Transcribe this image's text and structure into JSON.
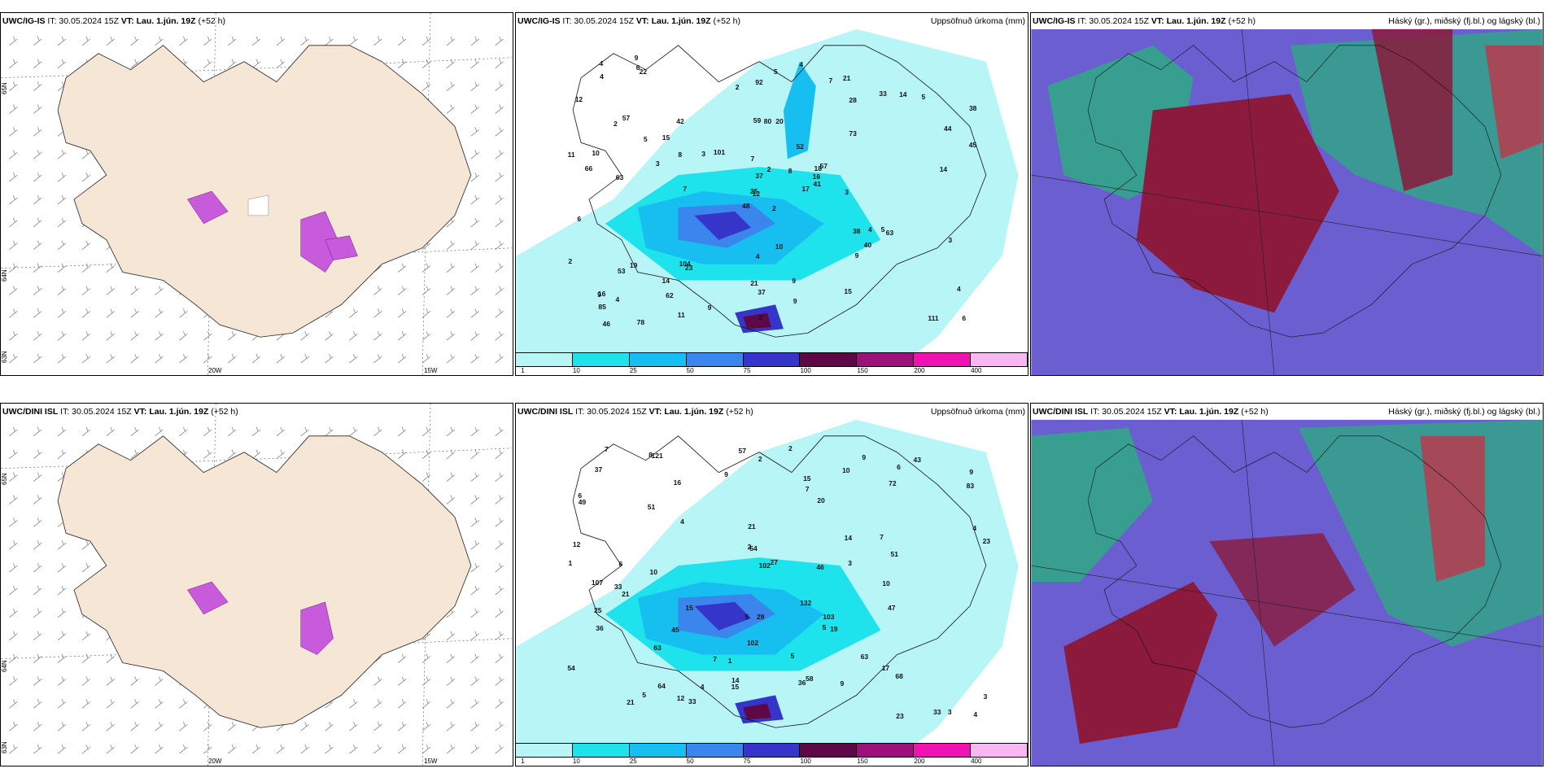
{
  "rows": [
    {
      "model": "UWC/IG-IS",
      "it": "IT: 30.05.2024 15Z",
      "vt": "VT: Lau. 1.jún. 19Z",
      "lead": "(+52 h)",
      "precip_values": [
        "2",
        "2",
        "12",
        "16",
        "18",
        "23",
        "21",
        "20",
        "28",
        "17",
        "22",
        "6",
        "63",
        "38",
        "48",
        "73",
        "78",
        "59",
        "52",
        "19",
        "101",
        "85",
        "62",
        "80",
        "57",
        "63",
        "57",
        "92",
        "66",
        "38",
        "45",
        "25",
        "21",
        "37",
        "42",
        "33",
        "104",
        "111",
        "4",
        "5",
        "4",
        "3",
        "3",
        "9",
        "11",
        "11",
        "16",
        "46",
        "37",
        "41",
        "53",
        "44",
        "12",
        "40",
        "15",
        "14",
        "6",
        "4",
        "9",
        "5",
        "5",
        "7",
        "10",
        "15",
        "14",
        "9",
        "7",
        "2",
        "2",
        "2",
        "4",
        "9",
        "4",
        "8",
        "9",
        "4",
        "5",
        "6",
        "7",
        "9",
        "8",
        "4",
        "3",
        "3",
        "2",
        "14",
        "10"
      ]
    },
    {
      "model": "UWC/DINI ISL",
      "it": "IT: 30.05.2024 15Z",
      "vt": "VT: Lau. 1.jún. 19Z",
      "lead": "(+52 h)",
      "precip_values": [
        "1",
        "2",
        "7",
        "9",
        "6",
        "33",
        "33",
        "20",
        "21",
        "43",
        "27",
        "47",
        "57",
        "49",
        "51",
        "63",
        "58",
        "107",
        "132",
        "102",
        "63",
        "68",
        "83",
        "54",
        "64",
        "102",
        "103",
        "121",
        "33",
        "36",
        "25",
        "23",
        "46",
        "21",
        "12",
        "36",
        "51",
        "37",
        "4",
        "4",
        "5",
        "3",
        "3",
        "23",
        "29",
        "45",
        "72",
        "54",
        "14",
        "10",
        "14",
        "17",
        "19",
        "10",
        "9",
        "9",
        "5",
        "2",
        "6",
        "7",
        "5",
        "5",
        "4",
        "4",
        "3",
        "6",
        "1",
        "15",
        "15",
        "12",
        "10",
        "7",
        "8",
        "7",
        "15",
        "16",
        "9",
        "21",
        "2"
      ]
    }
  ],
  "precip_title": "Uppsöfnuð úrkoma (mm)",
  "cloud_title": "Háský (gr.), miðský (fj.bl.) og lágský (bl.)",
  "lat_labels": [
    "65N",
    "64N",
    "63N"
  ],
  "lon_labels": [
    "20W",
    "15W"
  ],
  "scale_labels": [
    "1",
    "10",
    "25",
    "50",
    "75",
    "100",
    "150",
    "200",
    "400"
  ],
  "scale_colors": [
    "#b8f5f7",
    "#1ee3ec",
    "#16bff0",
    "#3a86ec",
    "#3535c9",
    "#5e0848",
    "#a0107a",
    "#f012b4",
    "#f7b8f2"
  ],
  "colors": {
    "land": "#f5e6d6",
    "sea": "#ffffff",
    "cloud_high": "#c0344a",
    "cloud_mid": "#2cae7f",
    "cloud_low": "#6a5ed0"
  }
}
